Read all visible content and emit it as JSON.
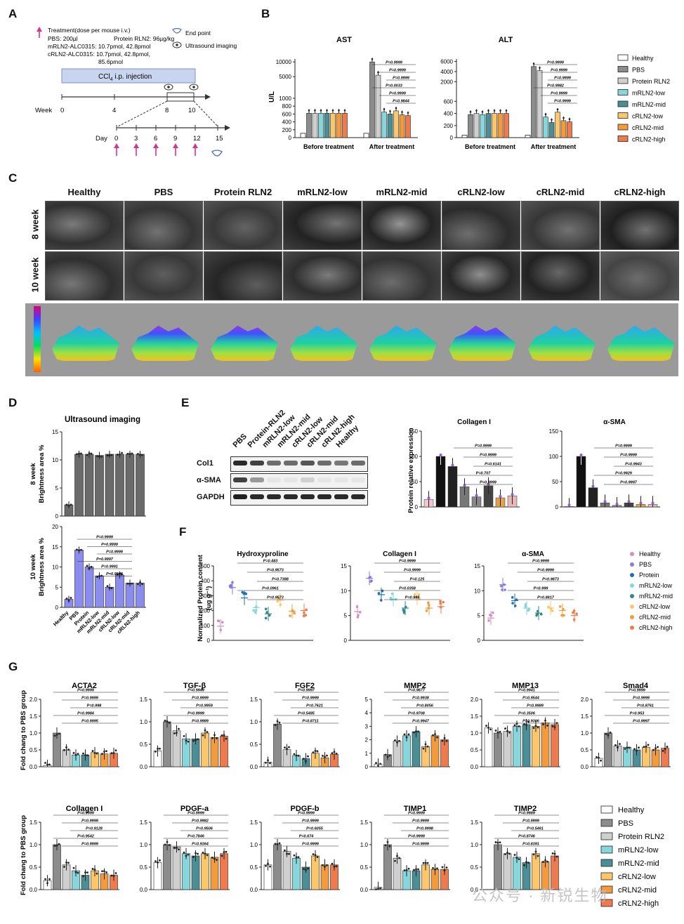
{
  "panels": {
    "A": "A",
    "B": "B",
    "C": "C",
    "D": "D",
    "E": "E",
    "F": "F",
    "G": "G"
  },
  "A": {
    "treatment_title": "Treatment(dose per mouse i.v.)",
    "lines": [
      "PBS: 200µl",
      "Protein RLN2: 96µg/kg",
      "mRLN2-ALC0315: 10.7pmol, 42.8pmol",
      "cRLN2-ALC0315: 10.7pmol, 42.8pmol,",
      "85.6pmol"
    ],
    "end_point": "End point",
    "ultrasound": "Ultrasound imaging",
    "ccl4": "CCl",
    "ccl4_sub": "4",
    "ccl4_rest": " i.p. injection",
    "week_label": "Week",
    "weeks": [
      "0",
      "4",
      "8",
      "10"
    ],
    "day_label": "Day",
    "days": [
      "0",
      "3",
      "6",
      "9",
      "12",
      "15"
    ]
  },
  "legend_groups": [
    "Healthy",
    "PBS",
    "Protein RLN2",
    "mRLN2-low",
    "mRLN2-mid",
    "cRLN2-low",
    "cRLN2-mid",
    "cRLN2-high"
  ],
  "colors": {
    "Healthy": "#ffffff",
    "PBS": "#8c8c8c",
    "Protein RLN2": "#cfcfcf",
    "mRLN2-low": "#86d6dc",
    "mRLN2-mid": "#4b8e95",
    "cRLN2-low": "#fcc66a",
    "cRLN2-mid": "#f39b3c",
    "cRLN2-high": "#ef7a4e"
  },
  "B": {
    "ylabel": "U/L",
    "xcats": [
      "Before treatment",
      "After treatment"
    ],
    "AST": {
      "title": "AST",
      "before": [
        620,
        620,
        620,
        620,
        620,
        620,
        620
      ],
      "after": [
        10000,
        5500,
        650,
        600,
        680,
        580,
        560
      ],
      "healthy": [
        110,
        110
      ],
      "p": [
        "P=0.9999",
        "P=0.9999",
        "P=0.9999",
        "P=0.0033",
        "P=0.9999",
        "P=0.9844"
      ]
    },
    "ALT": {
      "title": "ALT",
      "before": [
        380,
        400,
        380,
        400,
        400,
        400,
        400
      ],
      "after": [
        5000,
        4200,
        340,
        250,
        420,
        280,
        260
      ],
      "healthy": [
        40,
        40
      ],
      "p": [
        "P=0.9999",
        "P=0.9999",
        "P=0.9999",
        "P=0.9982",
        "P=0.9999",
        "P=0.9999"
      ]
    }
  },
  "C": {
    "cols": [
      "Healthy",
      "PBS",
      "Protein RLN2",
      "mRLN2-low",
      "mRLN2-mid",
      "cRLN2-low",
      "cRLN2-mid",
      "cRLN2-high"
    ],
    "rows": [
      "8 week",
      "10 week"
    ]
  },
  "D": {
    "title": "Ultrasound imaging",
    "ylabel8": "8 week\nBrightness area %",
    "ylabel8a": "8 week",
    "ylabel8b": "Brightness area %",
    "ylabel10a": "10 week",
    "ylabel10b": "Brightness area %",
    "values8": [
      2,
      11,
      11,
      10.8,
      11,
      11,
      11,
      11
    ],
    "values10": [
      2,
      14.2,
      10,
      7.8,
      5,
      8,
      6,
      6
    ],
    "p": [
      "P=0.9999",
      "P=0.9999",
      "P=0.9999",
      "P=0.9997",
      "P=0.9991",
      "P=0.9846"
    ],
    "xlabels": [
      "Healthy",
      "PBS",
      "Protein",
      "mRLN2-low",
      "mRLN2-mid",
      "cRLN2-low",
      "cRLN2-mid",
      "cRLN2-high"
    ]
  },
  "E": {
    "lanes": [
      "PBS",
      "Protein-RLN2",
      "mRLN2-low",
      "mRLN2-mid",
      "cRLN2-low",
      "cRLN2-mid",
      "cRLN2-high",
      "Healthy"
    ],
    "blots": [
      "Col1",
      "α-SMA",
      "GAPDH"
    ],
    "ylabel": "Protein relative expression",
    "collagen": {
      "title": "Collagen I",
      "values": [
        15,
        100,
        80,
        40,
        20,
        42,
        18,
        22
      ],
      "p": [
        "P=0.9999",
        "P=0.9999",
        "P=0.6141",
        "P=0.707",
        "P=0.9999"
      ]
    },
    "sma": {
      "title": "α-SMA",
      "values": [
        1,
        100,
        38,
        8,
        3,
        8,
        5,
        5
      ],
      "p": [
        "P=0.9999",
        "P=0.9999",
        "P=0.9943",
        "P=0.9929",
        "P=0.9997"
      ]
    }
  },
  "F": {
    "ylabel1": "Normalized Protein content",
    "ylabel2": "(ug g⁻¹)",
    "hyp": {
      "title": "Hydroxyproline",
      "values": [
        95,
        355,
        285,
        220,
        178,
        270,
        195,
        200
      ],
      "p": [
        "P=0.483",
        "P=0.9573",
        "P=0.7388",
        "P=0.0961",
        "P=0.9573"
      ]
    },
    "col": {
      "title": "Collagen I",
      "values": [
        5.8,
        12.5,
        9.2,
        8.3,
        6.5,
        8.5,
        6.5,
        6.8
      ],
      "p": [
        "P=0.9999",
        "P=0.9999",
        "P=0.125",
        "P=0.0358",
        "P=0.999"
      ]
    },
    "sma": {
      "title": "α-SMA",
      "values": [
        4.5,
        11.2,
        8,
        6.5,
        5.5,
        6.5,
        6,
        5
      ],
      "p": [
        "P=0.9999",
        "P=0.9999",
        "P=0.9873",
        "P=0.999",
        "P=0.8817"
      ]
    },
    "legend": [
      "Healthy",
      "PBS",
      "Protein",
      "mRLN2-low",
      "mRLN2-mid",
      "cRLN2-low",
      "cRLN2-mid",
      "cRLN2-high"
    ]
  },
  "G": {
    "ylabel": "Fold chang to PBS group",
    "charts": [
      {
        "title": "ACTA2",
        "ymax": 2.0,
        "ticks": [
          "0.0",
          "0.5",
          "1.0",
          "1.5",
          "2.0"
        ],
        "values": [
          0.04,
          1.0,
          0.5,
          0.35,
          0.35,
          0.42,
          0.38,
          0.4
        ],
        "p": [
          "P=0.9999",
          "P=0.9999",
          "P=0.998",
          "P=0.9984",
          "P=0.9995"
        ]
      },
      {
        "title": "TGF-β",
        "ymax": 1.5,
        "ticks": [
          "0.0",
          "0.5",
          "1.0",
          "1.5"
        ],
        "values": [
          0.35,
          1.0,
          0.8,
          0.62,
          0.62,
          0.75,
          0.65,
          0.68
        ],
        "p": [
          "P=0.9949",
          "P=0.9999",
          "P=0.9959",
          "P=0.9999",
          "P=0.9989"
        ]
      },
      {
        "title": "FGF2",
        "ymax": 1.5,
        "ticks": [
          "0.0",
          "0.5",
          "1.0",
          "1.5"
        ],
        "values": [
          0.1,
          0.95,
          0.38,
          0.25,
          0.18,
          0.3,
          0.2,
          0.28
        ],
        "p": [
          "P=0.9997",
          "P=0.9999",
          "P=0.7621",
          "P=0.5485",
          "P=0.8711"
        ]
      },
      {
        "title": "MMP2",
        "ymax": 5,
        "ticks": [
          "0",
          "1",
          "2",
          "3",
          "4",
          "5"
        ],
        "values": [
          0.2,
          0.9,
          1.9,
          2.3,
          2.6,
          1.5,
          2.3,
          2.0
        ],
        "p": [
          "P=0.9877",
          "P=0.9938",
          "P=0.8056",
          "P=0.9708",
          "P=0.9947"
        ]
      },
      {
        "title": "MMP13",
        "ymax": 2.0,
        "ticks": [
          "0.0",
          "0.5",
          "1.0",
          "1.5",
          "2.0"
        ],
        "values": [
          1.15,
          1.0,
          1.05,
          1.2,
          1.25,
          1.2,
          1.3,
          1.25
        ],
        "p": [
          "P=0.9941",
          "P=0.9544",
          "P=0.9989",
          "P=0.3506",
          "P=0.9306"
        ]
      },
      {
        "title": "Smad4",
        "ymax": 2.0,
        "ticks": [
          "0.0",
          "0.5",
          "1.0",
          "1.5",
          "2.0"
        ],
        "values": [
          0.25,
          1.0,
          0.62,
          0.58,
          0.5,
          0.58,
          0.5,
          0.55
        ],
        "p": [
          "P=0.9999",
          "P=0.9999",
          "P=0.8761",
          "P=0.953",
          "P=0.9997"
        ]
      },
      {
        "title": "Collagen I",
        "ymax": 1.5,
        "ticks": [
          "0.0",
          "0.5",
          "1.0",
          "1.5"
        ],
        "values": [
          0.2,
          1.0,
          0.55,
          0.42,
          0.32,
          0.42,
          0.35,
          0.32
        ],
        "p": [
          "P=0.9999",
          "P=0.9999",
          "P=0.9128",
          "P=0.9542",
          "P=0.9999"
        ]
      },
      {
        "title": "PDGF-a",
        "ymax": 1.5,
        "ticks": [
          "0.0",
          "0.5",
          "1.0",
          "1.5"
        ],
        "values": [
          0.6,
          1.0,
          0.95,
          0.8,
          0.75,
          0.8,
          0.72,
          0.8
        ],
        "p": [
          "P=0.9999",
          "P=0.9982",
          "P=0.9506",
          "P=0.7846",
          "P=0.9364"
        ]
      },
      {
        "title": "PDGF-b",
        "ymax": 1.5,
        "ticks": [
          "0.0",
          "0.5",
          "1.0",
          "1.5"
        ],
        "values": [
          0.55,
          1.0,
          0.85,
          0.7,
          0.5,
          0.75,
          0.55,
          0.55
        ],
        "p": [
          "P=0.9999",
          "P=0.9999",
          "P=0.6055",
          "P=0.674",
          "P=0.9999"
        ]
      },
      {
        "title": "TIMP1",
        "ymax": 1.5,
        "ticks": [
          "0.0",
          "0.5",
          "1.0",
          "1.5"
        ],
        "values": [
          0.05,
          1.0,
          0.7,
          0.42,
          0.42,
          0.55,
          0.45,
          0.45
        ],
        "p": [
          "P=0.9999",
          "P=0.9999",
          "P=0.9998",
          "P=0.9999",
          "P=0.9999"
        ]
      },
      {
        "title": "TIMP2",
        "ymax": 1.5,
        "ticks": [
          "0.0",
          "0.5",
          "1.0",
          "1.5"
        ],
        "values": [
          null,
          1.0,
          0.8,
          0.72,
          0.6,
          0.8,
          0.62,
          0.75
        ],
        "p": [
          "P=0.9989",
          "P=0.9999",
          "P=0.5461",
          "P=0.8746",
          "P=0.8391"
        ]
      }
    ]
  },
  "watermark": "公众号 · 新锐生物"
}
